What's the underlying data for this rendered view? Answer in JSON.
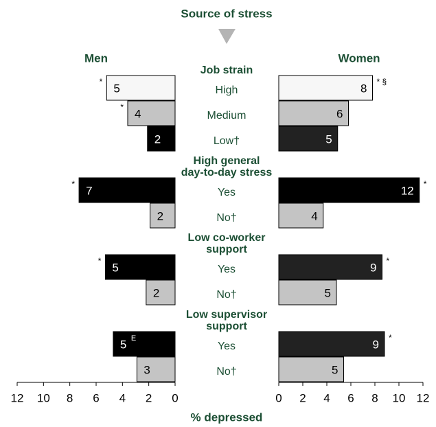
{
  "chart_data": {
    "type": "butterfly_bar",
    "title": "Source of stress",
    "xlabel": "% depressed",
    "xlim": [
      0,
      12
    ],
    "xticks": [
      0,
      2,
      4,
      6,
      8,
      10,
      12
    ],
    "groups": [
      {
        "label": [
          "Job strain"
        ],
        "categories": [
          "High",
          "Medium",
          "Low†"
        ]
      },
      {
        "label": [
          "High general",
          "day-to-day stress"
        ],
        "categories": [
          "Yes",
          "No†"
        ]
      },
      {
        "label": [
          "Low co-worker",
          "support"
        ],
        "categories": [
          "Yes",
          "No†"
        ]
      },
      {
        "label": [
          "Low supervisor",
          "support"
        ],
        "categories": [
          "Yes",
          "No†"
        ]
      }
    ],
    "series": [
      {
        "name": "Men",
        "values": [
          5.2,
          3.6,
          2.1,
          7.3,
          1.9,
          5.3,
          2.2,
          4.7,
          2.9
        ],
        "value_labels": [
          "5",
          "4",
          "2",
          "7",
          "2",
          "5",
          "2",
          "5",
          "3"
        ],
        "colors": [
          "#f7f7f7",
          "#c4c4c4",
          "#000000",
          "#000000",
          "#c4c4c4",
          "#000000",
          "#c4c4c4",
          "#000000",
          "#c4c4c4"
        ],
        "notes": [
          "*",
          "*",
          null,
          "*",
          null,
          "*",
          null,
          null,
          null
        ],
        "inner_notes": [
          null,
          null,
          null,
          null,
          null,
          null,
          null,
          "E",
          null
        ]
      },
      {
        "name": "Women",
        "values": [
          7.8,
          5.8,
          4.9,
          11.7,
          3.7,
          8.6,
          4.8,
          8.8,
          5.4
        ],
        "value_labels": [
          "8",
          "6",
          "5",
          "12",
          "4",
          "9",
          "5",
          "9",
          "5"
        ],
        "colors": [
          "#f7f7f7",
          "#c4c4c4",
          "#222222",
          "#000000",
          "#c4c4c4",
          "#222222",
          "#c4c4c4",
          "#222222",
          "#c4c4c4"
        ],
        "notes": [
          "* §",
          null,
          null,
          "*",
          null,
          "*",
          null,
          "*",
          null
        ],
        "inner_notes": [
          null,
          null,
          null,
          null,
          null,
          null,
          null,
          null,
          null
        ]
      }
    ]
  }
}
